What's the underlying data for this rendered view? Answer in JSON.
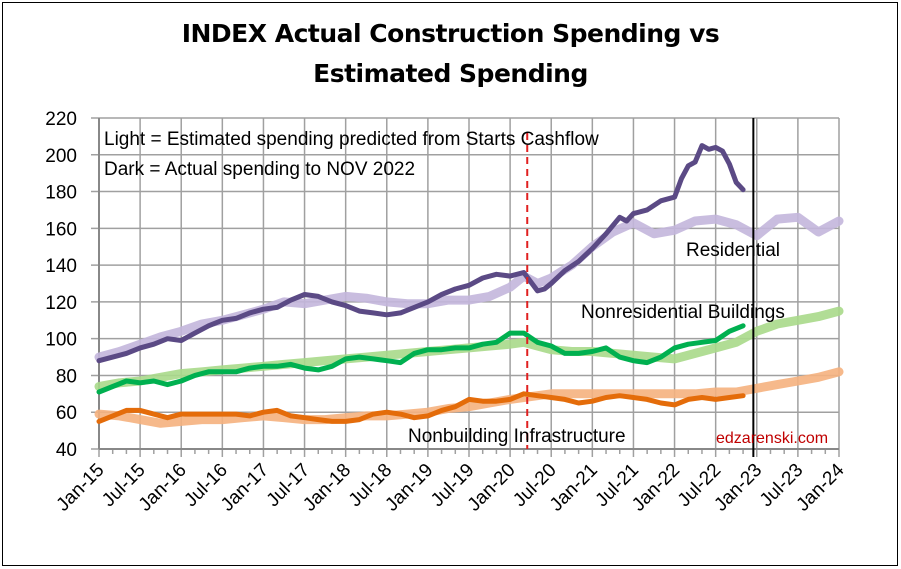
{
  "chart_data": {
    "type": "line",
    "title": "INDEX Actual Construction Spending vs Estimated Spending",
    "title_lines": [
      "INDEX Actual Construction Spending vs",
      "Estimated Spending"
    ],
    "xlabel": "",
    "ylabel": "",
    "ylim": [
      40,
      220
    ],
    "yticks": [
      40,
      60,
      80,
      100,
      120,
      140,
      160,
      180,
      200,
      220
    ],
    "x_start": "Jan-15",
    "x_end": "Jan-24",
    "xticks": [
      "Jan-15",
      "Jul-15",
      "Jan-16",
      "Jul-16",
      "Jan-17",
      "Jul-17",
      "Jan-18",
      "Jul-18",
      "Jan-19",
      "Jul-19",
      "Jan-20",
      "Jul-20",
      "Jan-21",
      "Jul-21",
      "Jan-22",
      "Jul-22",
      "Jan-23",
      "Jul-23",
      "Jan-24"
    ],
    "grid": true,
    "notes": [
      "Light = Estimated spending predicted from Starts Cashflow",
      "Dark = Actual spending to  NOV 2022"
    ],
    "labels": {
      "residential": "Residential",
      "nonresidential": "Nonresidential Buildings",
      "nonbuilding": "Nonbuilding Infrastructure"
    },
    "watermark": "edzarenski.com",
    "markers": [
      {
        "name": "covid-start",
        "x_month": "Mar-20",
        "style": "red-dashed"
      },
      {
        "name": "last-actual",
        "x_month": "Nov-22",
        "style": "black-solid"
      }
    ],
    "x_unit": "months since Jan-15",
    "series": [
      {
        "name": "Residential Estimated",
        "kind": "estimated",
        "color": "#c3b6dc",
        "x": [
          0,
          3,
          6,
          9,
          12,
          15,
          18,
          21,
          24,
          27,
          30,
          33,
          36,
          39,
          42,
          45,
          48,
          51,
          54,
          57,
          60,
          62,
          64,
          66,
          69,
          72,
          75,
          78,
          81,
          84,
          87,
          90,
          93,
          96,
          99,
          102,
          105,
          108
        ],
        "y": [
          90,
          93,
          97,
          101,
          104,
          108,
          110,
          113,
          116,
          120,
          119,
          121,
          123,
          122,
          120,
          119,
          119,
          121,
          121,
          123,
          128,
          134,
          130,
          133,
          140,
          150,
          158,
          163,
          157,
          159,
          164,
          165,
          162,
          156,
          165,
          166,
          158,
          164
        ]
      },
      {
        "name": "Residential Actual",
        "kind": "actual",
        "color": "#5b4a85",
        "x": [
          0,
          2,
          4,
          6,
          8,
          10,
          12,
          14,
          16,
          18,
          20,
          22,
          24,
          26,
          28,
          30,
          32,
          34,
          36,
          38,
          40,
          42,
          44,
          46,
          48,
          50,
          52,
          54,
          56,
          58,
          60,
          62,
          63,
          64,
          65,
          66,
          68,
          70,
          72,
          74,
          76,
          77,
          78,
          80,
          82,
          84,
          85,
          86,
          87,
          88,
          89,
          90,
          91,
          92,
          93,
          94
        ],
        "y": [
          88,
          90,
          92,
          95,
          97,
          100,
          99,
          103,
          107,
          110,
          111,
          114,
          116,
          117,
          121,
          124,
          123,
          120,
          118,
          115,
          114,
          113,
          114,
          117,
          120,
          124,
          127,
          129,
          133,
          135,
          134,
          136,
          131,
          126,
          127,
          130,
          137,
          142,
          149,
          157,
          166,
          164,
          168,
          170,
          175,
          177,
          187,
          194,
          196,
          205,
          203,
          204,
          202,
          195,
          185,
          181
        ]
      },
      {
        "name": "Nonresidential Buildings Estimated",
        "kind": "estimated",
        "color": "#a9d98a",
        "x": [
          0,
          3,
          6,
          9,
          12,
          15,
          18,
          21,
          24,
          27,
          30,
          33,
          36,
          39,
          42,
          45,
          48,
          51,
          54,
          57,
          60,
          62,
          64,
          66,
          69,
          72,
          75,
          78,
          81,
          84,
          87,
          90,
          93,
          96,
          99,
          102,
          105,
          108
        ],
        "y": [
          74,
          76,
          77,
          79,
          81,
          82,
          83,
          84,
          85,
          86,
          87,
          88,
          89,
          90,
          91,
          92,
          93,
          94,
          95,
          96,
          97,
          98,
          96,
          94,
          93,
          93,
          92,
          91,
          90,
          89,
          92,
          95,
          98,
          104,
          108,
          110,
          112,
          115
        ]
      },
      {
        "name": "Nonresidential Buildings Actual",
        "kind": "actual",
        "color": "#00b050",
        "x": [
          0,
          2,
          4,
          6,
          8,
          10,
          12,
          14,
          16,
          18,
          20,
          22,
          24,
          26,
          28,
          30,
          32,
          34,
          36,
          38,
          40,
          42,
          44,
          46,
          48,
          50,
          52,
          54,
          56,
          58,
          60,
          62,
          64,
          66,
          68,
          70,
          72,
          74,
          76,
          78,
          80,
          82,
          84,
          86,
          88,
          90,
          92,
          94
        ],
        "y": [
          71,
          74,
          77,
          76,
          77,
          75,
          77,
          80,
          82,
          82,
          82,
          84,
          85,
          85,
          86,
          84,
          83,
          85,
          89,
          90,
          89,
          88,
          87,
          92,
          94,
          94,
          95,
          95,
          97,
          98,
          103,
          103,
          98,
          96,
          92,
          92,
          93,
          95,
          90,
          88,
          87,
          90,
          95,
          97,
          98,
          99,
          104,
          107
        ]
      },
      {
        "name": "Nonbuilding Infrastructure Estimated",
        "kind": "estimated",
        "color": "#f5b17e",
        "x": [
          0,
          3,
          6,
          9,
          12,
          15,
          18,
          21,
          24,
          27,
          30,
          33,
          36,
          39,
          42,
          45,
          48,
          51,
          54,
          57,
          60,
          62,
          64,
          66,
          69,
          72,
          75,
          78,
          81,
          84,
          87,
          90,
          93,
          96,
          99,
          102,
          105,
          108
        ],
        "y": [
          59,
          58,
          56,
          54,
          55,
          56,
          56,
          57,
          58,
          57,
          56,
          56,
          57,
          58,
          58,
          59,
          60,
          62,
          63,
          65,
          67,
          68,
          69,
          70,
          70,
          70,
          70,
          70,
          70,
          70,
          70,
          71,
          71,
          73,
          75,
          77,
          79,
          82
        ]
      },
      {
        "name": "Nonbuilding Infrastructure Actual",
        "kind": "actual",
        "color": "#e46c0a",
        "x": [
          0,
          2,
          4,
          6,
          8,
          10,
          12,
          14,
          16,
          18,
          20,
          22,
          24,
          26,
          28,
          30,
          32,
          34,
          36,
          38,
          40,
          42,
          44,
          46,
          48,
          50,
          52,
          54,
          56,
          58,
          60,
          62,
          64,
          66,
          68,
          70,
          72,
          74,
          76,
          78,
          80,
          82,
          84,
          86,
          88,
          90,
          92,
          94
        ],
        "y": [
          55,
          58,
          61,
          61,
          59,
          57,
          59,
          59,
          59,
          59,
          59,
          58,
          60,
          61,
          58,
          57,
          56,
          55,
          55,
          56,
          59,
          60,
          59,
          57,
          58,
          61,
          63,
          67,
          66,
          66,
          67,
          70,
          69,
          68,
          67,
          65,
          66,
          68,
          69,
          68,
          67,
          65,
          64,
          67,
          68,
          67,
          68,
          69
        ]
      }
    ]
  }
}
